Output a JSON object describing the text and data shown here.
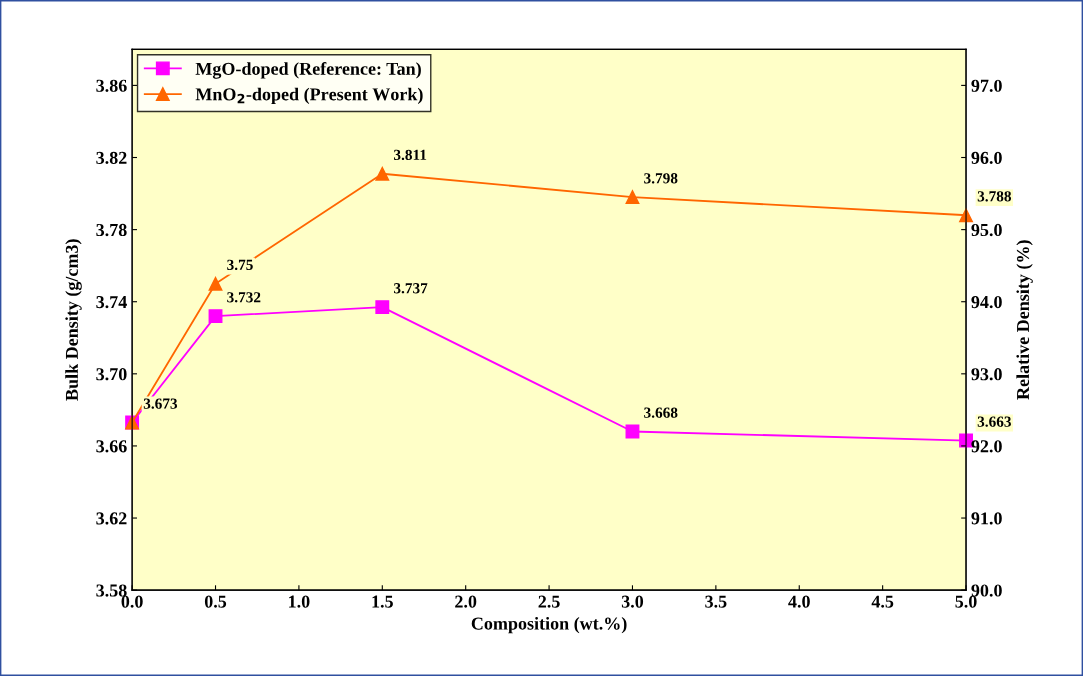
{
  "chart_data": {
    "type": "line",
    "xlabel": "Composition (wt.%)",
    "ylabel": "Bulk Density (g/cm3)",
    "y2label": "Relative Density (%)",
    "x": [
      0,
      0.5,
      1.5,
      3,
      5
    ],
    "series": [
      {
        "name": "MgO-doped (Reference: Tan)",
        "color": "#ff00ff",
        "marker": "square",
        "values": [
          3.673,
          3.732,
          3.737,
          3.668,
          3.663
        ],
        "value_labels": [
          "3.673",
          "3.732",
          "3.737",
          "3.668",
          "3.663"
        ]
      },
      {
        "name": "MnO$_{2}$-doped (Present Work)",
        "color": "#ff6600",
        "marker": "triangle",
        "values": [
          3.673,
          3.75,
          3.811,
          3.798,
          3.788
        ],
        "value_labels": [
          null,
          "3.75",
          "3.811",
          "3.798",
          "3.788"
        ]
      }
    ],
    "xlim": [
      0,
      5
    ],
    "xticks": [
      {
        "value": 0,
        "label": "0.0"
      },
      {
        "value": 0.5,
        "label": "0.5"
      },
      {
        "value": 1,
        "label": "1.0"
      },
      {
        "value": 1.5,
        "label": "1.5"
      },
      {
        "value": 2,
        "label": "2.0"
      },
      {
        "value": 2.5,
        "label": "2.5"
      },
      {
        "value": 3,
        "label": "3.0"
      },
      {
        "value": 3.5,
        "label": "3.5"
      },
      {
        "value": 4,
        "label": "4.0"
      },
      {
        "value": 4.5,
        "label": "4.5"
      },
      {
        "value": 5,
        "label": "5.0"
      }
    ],
    "ylim": [
      3.58,
      3.88
    ],
    "yticks": [
      3.58,
      3.62,
      3.66,
      {
        "value": 3.7,
        "label": "3.70"
      },
      3.74,
      3.78,
      3.82,
      3.86
    ],
    "y2lim": [
      90,
      97.5
    ],
    "y2ticks": [
      {
        "value": 90,
        "label": "90.0"
      },
      {
        "value": 91,
        "label": "91.0"
      },
      {
        "value": 92,
        "label": "92.0"
      },
      {
        "value": 93,
        "label": "93.0"
      },
      {
        "value": 94,
        "label": "94.0"
      },
      {
        "value": 95,
        "label": "95.0"
      },
      {
        "value": 96,
        "label": "96.0"
      },
      {
        "value": 97,
        "label": "97.0"
      }
    ],
    "grid": false,
    "legend": "top left",
    "line_style": "solid"
  }
}
